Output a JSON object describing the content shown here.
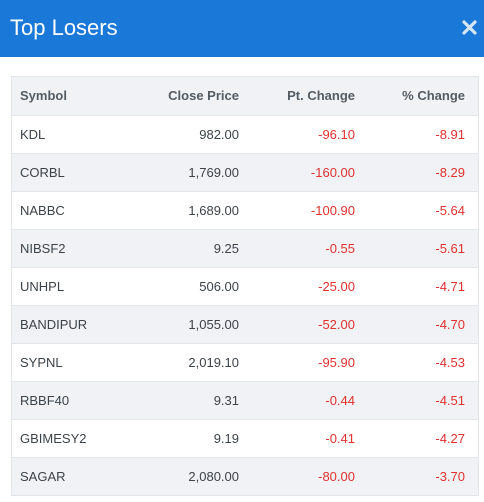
{
  "header": {
    "title": "Top Losers",
    "close_icon": "close-icon"
  },
  "colors": {
    "header_bg": "#1a78d8",
    "negative": "#e0312f",
    "row_alt": "#f0f2f5"
  },
  "table": {
    "columns": [
      "Symbol",
      "Close Price",
      "Pt. Change",
      "% Change"
    ],
    "rows": [
      {
        "symbol": "KDL",
        "close_price": "982.00",
        "pt_change": "-96.10",
        "pct_change": "-8.91"
      },
      {
        "symbol": "CORBL",
        "close_price": "1,769.00",
        "pt_change": "-160.00",
        "pct_change": "-8.29"
      },
      {
        "symbol": "NABBC",
        "close_price": "1,689.00",
        "pt_change": "-100.90",
        "pct_change": "-5.64"
      },
      {
        "symbol": "NIBSF2",
        "close_price": "9.25",
        "pt_change": "-0.55",
        "pct_change": "-5.61"
      },
      {
        "symbol": "UNHPL",
        "close_price": "506.00",
        "pt_change": "-25.00",
        "pct_change": "-4.71"
      },
      {
        "symbol": "BANDIPUR",
        "close_price": "1,055.00",
        "pt_change": "-52.00",
        "pct_change": "-4.70"
      },
      {
        "symbol": "SYPNL",
        "close_price": "2,019.10",
        "pt_change": "-95.90",
        "pct_change": "-4.53"
      },
      {
        "symbol": "RBBF40",
        "close_price": "9.31",
        "pt_change": "-0.44",
        "pct_change": "-4.51"
      },
      {
        "symbol": "GBIMESY2",
        "close_price": "9.19",
        "pt_change": "-0.41",
        "pct_change": "-4.27"
      },
      {
        "symbol": "SAGAR",
        "close_price": "2,080.00",
        "pt_change": "-80.00",
        "pct_change": "-3.70"
      }
    ]
  }
}
